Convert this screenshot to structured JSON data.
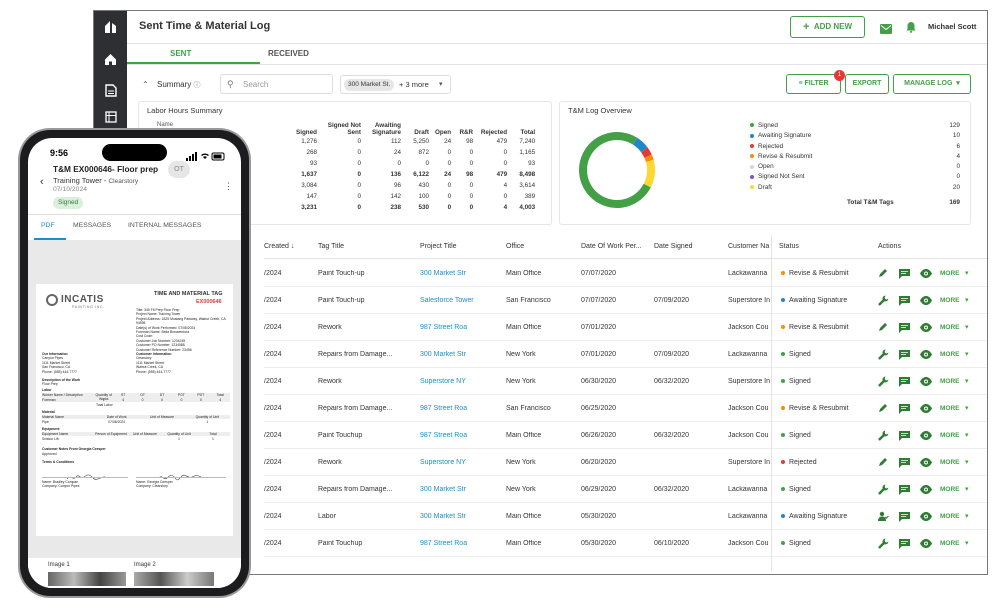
{
  "app": {
    "title": "Sent Time & Material Log",
    "add_new": "ADD NEW",
    "user": "Michael Scott"
  },
  "tabs": {
    "sent": "SENT",
    "received": "RECEIVED"
  },
  "filters": {
    "summary_label": "Summary",
    "search_placeholder": "Search",
    "chip": "300 Market St.",
    "more": "+ 3 more",
    "filter": "FILTER",
    "filter_count": "1",
    "export": "EXPORT",
    "manage": "MANAGE LOG"
  },
  "labor": {
    "title": "Labor Hours Summary",
    "partial_label": "Name",
    "headers": [
      "Signed",
      "Signed Not Sent",
      "Awaiting Signature",
      "Draft",
      "Open",
      "R&R",
      "Rejected",
      "Total"
    ],
    "rows": [
      [
        "1,276",
        "0",
        "112",
        "5,250",
        "24",
        "98",
        "479",
        "7,240"
      ],
      [
        "268",
        "0",
        "24",
        "872",
        "0",
        "0",
        "0",
        "1,165"
      ],
      [
        "93",
        "0",
        "0",
        "0",
        "0",
        "0",
        "0",
        "93"
      ],
      [
        "1,637",
        "0",
        "136",
        "6,122",
        "24",
        "98",
        "479",
        "8,498"
      ],
      [
        "3,084",
        "0",
        "96",
        "430",
        "0",
        "0",
        "4",
        "3,614"
      ],
      [
        "147",
        "0",
        "142",
        "100",
        "0",
        "0",
        "0",
        "389"
      ],
      [
        "3,231",
        "0",
        "238",
        "530",
        "0",
        "0",
        "4",
        "4,003"
      ]
    ],
    "bold_rows": [
      3,
      6
    ]
  },
  "overview": {
    "title": "T&M Log Overview",
    "legend": [
      {
        "label": "Signed",
        "value": "129",
        "color": "#43a047"
      },
      {
        "label": "Awaiting Signature",
        "value": "10",
        "color": "#1e88c8"
      },
      {
        "label": "Rejected",
        "value": "6",
        "color": "#e53935"
      },
      {
        "label": "Revise & Resubmit",
        "value": "4",
        "color": "#fb8c00"
      },
      {
        "label": "Open",
        "value": "0",
        "color": "#cfd8dc"
      },
      {
        "label": "Signed Not Sent",
        "value": "0",
        "color": "#7e57c2"
      },
      {
        "label": "Draft",
        "value": "20",
        "color": "#fdd835"
      }
    ],
    "total_label": "Total T&M Tags",
    "total": "169"
  },
  "table": {
    "headers": [
      "Created",
      "Tag Title",
      "Project Title",
      "Office",
      "Date Of Work Per...",
      "Date Signed",
      "Customer Na",
      "Status",
      "Actions"
    ],
    "more": "MORE",
    "rows": [
      {
        "created": "/2024",
        "tag": "Paint Touch-up",
        "project": "300 Market Str",
        "office": "Main Office",
        "work": "07/07/2020",
        "signed": "",
        "customer": "Lackawanna",
        "status": "Revise & Resubmit",
        "color": "#fb8c00",
        "icon": "edit"
      },
      {
        "created": "/2024",
        "tag": "Paint Touch-up",
        "project": "Salesforce Tower",
        "office": "San Francisco",
        "work": "07/07/2020",
        "signed": "07/09/2020",
        "customer": "Superstore In",
        "status": "Awaiting Signature",
        "color": "#1e88c8",
        "icon": "wrench"
      },
      {
        "created": "/2024",
        "tag": "Rework",
        "project": "987 Street Roa",
        "office": "Main Office",
        "work": "07/01/2020",
        "signed": "",
        "customer": "Jackson Cou",
        "status": "Revise & Resubmit",
        "color": "#fb8c00",
        "icon": "edit"
      },
      {
        "created": "/2024",
        "tag": "Repairs from Damage...",
        "project": "300 Market Str",
        "office": "New York",
        "work": "07/01/2020",
        "signed": "07/09/2020",
        "customer": "Lackawanna",
        "status": "Signed",
        "color": "#43a047",
        "icon": "wrench"
      },
      {
        "created": "/2024",
        "tag": "Rework",
        "project": "Superstore NY",
        "office": "New York",
        "work": "06/30/2020",
        "signed": "06/32/2020",
        "customer": "Superstore In",
        "status": "Signed",
        "color": "#43a047",
        "icon": "wrench"
      },
      {
        "created": "/2024",
        "tag": "Repairs from Damage...",
        "project": "987 Street Roa",
        "office": "San Francisco",
        "work": "06/25/2020",
        "signed": "",
        "customer": "Jackson Cou",
        "status": "Revise & Resubmit",
        "color": "#fb8c00",
        "icon": "edit"
      },
      {
        "created": "/2024",
        "tag": "Paint Touchup",
        "project": "987 Street Roa",
        "office": "Main Office",
        "work": "06/26/2020",
        "signed": "06/32/2020",
        "customer": "Jackson Cou",
        "status": "Signed",
        "color": "#43a047",
        "icon": "wrench"
      },
      {
        "created": "/2024",
        "tag": "Rework",
        "project": "Superstore NY",
        "office": "New York",
        "work": "06/20/2020",
        "signed": "",
        "customer": "Superstore In",
        "status": "Rejected",
        "color": "#e53935",
        "icon": "edit"
      },
      {
        "created": "/2024",
        "tag": "Repairs from Damage...",
        "project": "300 Market Str",
        "office": "New York",
        "work": "06/29/2020",
        "signed": "06/32/2020",
        "customer": "Lackawanna",
        "status": "Signed",
        "color": "#43a047",
        "icon": "wrench"
      },
      {
        "created": "/2024",
        "tag": "Labor",
        "project": "300 Market Str",
        "office": "Main Office",
        "work": "05/30/2020",
        "signed": "",
        "customer": "Lackawanna",
        "status": "Awaiting Signature",
        "color": "#1e88c8",
        "icon": "person"
      },
      {
        "created": "/2024",
        "tag": "Paint Touchup",
        "project": "987 Street Roa",
        "office": "Main Office",
        "work": "05/30/2020",
        "signed": "06/10/2020",
        "customer": "Jackson Cou",
        "status": "Signed",
        "color": "#43a047",
        "icon": "wrench"
      }
    ]
  },
  "phone": {
    "time": "9:56",
    "title": "T&M  EX000646- Floor prep",
    "badge": "OT",
    "project": "Training Tower",
    "company": "Clearstory",
    "date": "07/10/2024",
    "status": "Signed",
    "tabs": [
      "PDF",
      "MESSAGES",
      "INTERNAL MESSAGES"
    ],
    "doc": {
      "brand": "INCATIS",
      "brand_sub": "PAINTING INC.",
      "heading": "TIME AND MATERIAL TAG",
      "number": "EX000646",
      "info_lines": [
        "Title: 345 Fit Prep Floor Prep",
        "Project Name: Training Tower",
        "Project Address: 1825 Mustang Parkway, Walnut Creek, CA 94598",
        "Date(s) of Work Performed: 07/08/2024",
        "Foreman Name: Bella Bonaventura",
        "Cost Code: ",
        "Customer Job Number: 1234245",
        "Customer PO Number: 1234588",
        "Customer Reference Number: 23456"
      ],
      "left_block": [
        "Our Information",
        "Canyon Pipes",
        "1111 Market Street",
        "San Francisco, CA",
        "Phone: (555) 444-7777"
      ],
      "right_block": [
        "Customer Information",
        "Clearstory",
        "1111 Market Street",
        "Walnut Creek, CA",
        "Phone: (555) 444-7777"
      ],
      "desc_label": "Description of the Work",
      "desc": "Floor Prep",
      "labor_label": "Labor",
      "labor_cols": [
        "Worker Name / Description",
        "Quantity of Works",
        "ST",
        "OT",
        "DT",
        "POT",
        "PDT",
        "Total"
      ],
      "labor_row": [
        "Foreman",
        "1",
        "4",
        "0",
        "0",
        "0",
        "0",
        "4"
      ],
      "total_label": "Total Labor",
      "material_label": "Material",
      "material_cols": [
        "Material Name",
        "Date of Work",
        "Unit of Measure",
        "Quantity of Unit"
      ],
      "material_row": [
        "Pipe",
        "07/08/2024",
        "",
        "1"
      ],
      "equipment_label": "Equipment",
      "equipment_cols": [
        "Equipment Name",
        "Person of Equipment",
        "Unit of Measure",
        "Quantity of Unit",
        "Total"
      ],
      "equipment_row": [
        "Scissor Lift",
        "",
        "",
        "1",
        "1"
      ],
      "notes_label": "Customer Notes From Georgia Ceesper",
      "notes": "Approved",
      "terms": "Terms & Conditions",
      "signer_left": "Name: Bradley Compan",
      "company_left": "Company: Canyon Pipes",
      "signer_right": "Name: Georgia Ceesper",
      "company_right": "Company: Clearstory"
    },
    "images": [
      "Image 1",
      "Image 2"
    ]
  }
}
